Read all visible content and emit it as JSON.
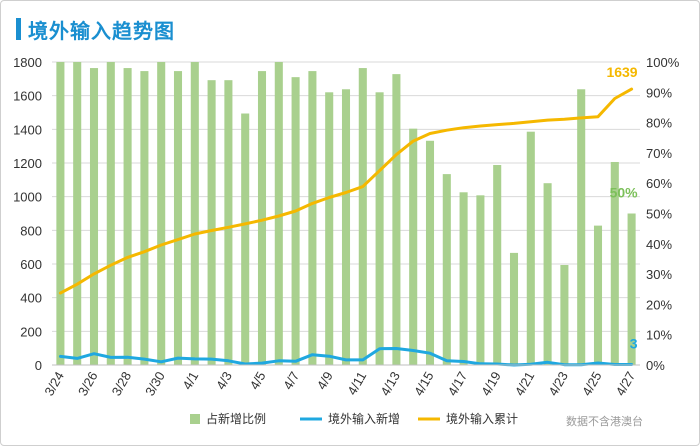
{
  "title": "境外输入趋势图",
  "source": "数据不含港澳台",
  "colors": {
    "bars": "#a9d08e",
    "new_line": "#1fa8e0",
    "cum_line": "#f5b800",
    "title": "#1a8fd0",
    "grid": "#d9d9d9"
  },
  "chart_data": {
    "type": "bar",
    "categories": [
      "3/24",
      "3/25",
      "3/26",
      "3/27",
      "3/28",
      "3/29",
      "3/30",
      "3/31",
      "4/1",
      "4/2",
      "4/3",
      "4/4",
      "4/5",
      "4/6",
      "4/7",
      "4/8",
      "4/9",
      "4/10",
      "4/11",
      "4/12",
      "4/13",
      "4/14",
      "4/15",
      "4/16",
      "4/17",
      "4/18",
      "4/19",
      "4/20",
      "4/21",
      "4/22",
      "4/23",
      "4/24",
      "4/25",
      "4/26",
      "4/27"
    ],
    "x_tick_labels": [
      "3/24",
      "3/26",
      "3/28",
      "3/30",
      "4/1",
      "4/3",
      "4/5",
      "4/7",
      "4/9",
      "4/11",
      "4/13",
      "4/15",
      "4/17",
      "4/19",
      "4/21",
      "4/23",
      "4/25",
      "4/27"
    ],
    "y_left": {
      "min": 0,
      "max": 1800,
      "step": 200
    },
    "y_right": {
      "min": 0,
      "max": 100,
      "step": 10,
      "suffix": "%"
    },
    "grid": true,
    "legend_position": "bottom",
    "series": [
      {
        "name": "占新增比例",
        "type": "bar",
        "axis": "right",
        "values": [
          100,
          100,
          98,
          100,
          98,
          97,
          100,
          97,
          100,
          94,
          94,
          83,
          97,
          100,
          95,
          97,
          90,
          91,
          98,
          90,
          96,
          78,
          74,
          63,
          57,
          56,
          66,
          37,
          77,
          60,
          33,
          91,
          46,
          67,
          50
        ]
      },
      {
        "name": "境外输入新增",
        "type": "line",
        "axis": "left",
        "values": [
          51,
          39,
          67,
          45,
          46,
          35,
          19,
          41,
          36,
          35,
          25,
          6,
          11,
          25,
          22,
          61,
          52,
          30,
          30,
          97,
          98,
          86,
          70,
          25,
          21,
          7,
          6,
          0,
          4,
          16,
          2,
          1,
          12,
          3,
          3
        ]
      },
      {
        "name": "境外输入累计",
        "type": "line",
        "axis": "left",
        "values": [
          427,
          480,
          541,
          593,
          639,
          673,
          713,
          745,
          778,
          799,
          818,
          838,
          860,
          885,
          915,
          960,
          995,
          1025,
          1060,
          1155,
          1250,
          1330,
          1375,
          1395,
          1410,
          1420,
          1428,
          1435,
          1445,
          1455,
          1460,
          1468,
          1475,
          1583,
          1639
        ]
      }
    ],
    "annotations": [
      {
        "series": "境外输入累计",
        "index": 34,
        "text": "1639"
      },
      {
        "series": "占新增比例",
        "index": 34,
        "text": "50%"
      },
      {
        "series": "境外输入新增",
        "index": 34,
        "text": "3"
      }
    ]
  }
}
